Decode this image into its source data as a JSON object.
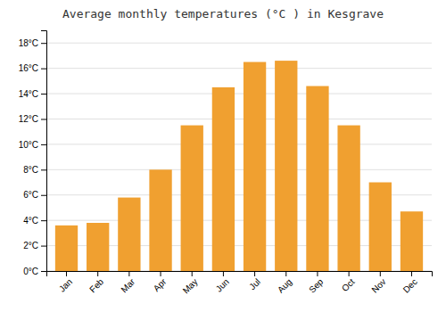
{
  "chart_data": {
    "type": "bar",
    "title": "Average monthly temperatures (°C ) in Kesgrave",
    "categories": [
      "Jan",
      "Feb",
      "Mar",
      "Apr",
      "May",
      "Jun",
      "Jul",
      "Aug",
      "Sep",
      "Oct",
      "Nov",
      "Dec"
    ],
    "values": [
      3.6,
      3.8,
      5.8,
      8.0,
      11.5,
      14.5,
      16.5,
      16.6,
      14.6,
      11.5,
      7.0,
      4.7
    ],
    "color": "#F0A030",
    "ylim": [
      0,
      19
    ],
    "yticks": [
      {
        "value": 0,
        "label": "0°C"
      },
      {
        "value": 2,
        "label": "2°C"
      },
      {
        "value": 4,
        "label": "4°C"
      },
      {
        "value": 6,
        "label": "6°C"
      },
      {
        "value": 8,
        "label": "8°C"
      },
      {
        "value": 10,
        "label": "10°C"
      },
      {
        "value": 12,
        "label": "12°C"
      },
      {
        "value": 14,
        "label": "14°C"
      },
      {
        "value": 16,
        "label": "16°C"
      },
      {
        "value": 18,
        "label": "18°C"
      }
    ],
    "grid": true
  }
}
